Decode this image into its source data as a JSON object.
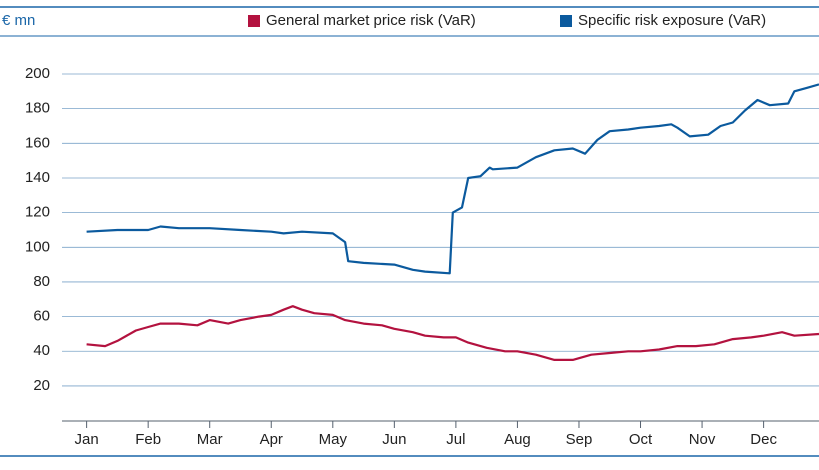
{
  "chart_data": {
    "type": "line",
    "y_unit": "€ mn",
    "ylim": [
      0,
      200
    ],
    "yticks": [
      20,
      40,
      60,
      80,
      100,
      120,
      140,
      160,
      180,
      200
    ],
    "xlim": [
      -0.4,
      11.9
    ],
    "xticks": [
      {
        "value": 0,
        "label": "Jan"
      },
      {
        "value": 1,
        "label": "Feb"
      },
      {
        "value": 2,
        "label": "Mar"
      },
      {
        "value": 3,
        "label": "Apr"
      },
      {
        "value": 4,
        "label": "May"
      },
      {
        "value": 5,
        "label": "Jun"
      },
      {
        "value": 6,
        "label": "Jul"
      },
      {
        "value": 7,
        "label": "Aug"
      },
      {
        "value": 8,
        "label": "Sep"
      },
      {
        "value": 9,
        "label": "Oct"
      },
      {
        "value": 10,
        "label": "Nov"
      },
      {
        "value": 11,
        "label": "Dec"
      }
    ],
    "grid": true,
    "legend": "top-right",
    "series": [
      {
        "name": "General market price risk (VaR)",
        "color": "#b3123f",
        "x": [
          0,
          0.3,
          0.5,
          0.8,
          1.0,
          1.2,
          1.5,
          1.8,
          2.0,
          2.3,
          2.5,
          2.8,
          3.0,
          3.2,
          3.35,
          3.5,
          3.7,
          4.0,
          4.2,
          4.5,
          4.8,
          5.0,
          5.3,
          5.5,
          5.8,
          6.0,
          6.2,
          6.5,
          6.8,
          7.0,
          7.3,
          7.6,
          7.9,
          8.2,
          8.5,
          8.8,
          9.0,
          9.3,
          9.6,
          9.9,
          10.2,
          10.5,
          10.8,
          11.0,
          11.3,
          11.5,
          11.9
        ],
        "values": [
          44,
          43,
          46,
          52,
          54,
          56,
          56,
          55,
          58,
          56,
          58,
          60,
          61,
          64,
          66,
          64,
          62,
          61,
          58,
          56,
          55,
          53,
          51,
          49,
          48,
          48,
          45,
          42,
          40,
          40,
          38,
          35,
          35,
          38,
          39,
          40,
          40,
          41,
          43,
          43,
          44,
          47,
          48,
          49,
          51,
          49,
          50
        ]
      },
      {
        "name": "Specific risk exposure (VaR)",
        "color": "#0b5a9e",
        "x": [
          0,
          0.5,
          1.0,
          1.2,
          1.5,
          2.0,
          2.5,
          3.0,
          3.2,
          3.5,
          4.0,
          4.2,
          4.25,
          4.5,
          5.0,
          5.3,
          5.5,
          5.9,
          5.95,
          6.1,
          6.2,
          6.4,
          6.55,
          6.6,
          7.0,
          7.3,
          7.6,
          7.9,
          8.1,
          8.3,
          8.5,
          8.8,
          9.0,
          9.3,
          9.5,
          9.6,
          9.8,
          10.1,
          10.3,
          10.5,
          10.7,
          10.9,
          11.1,
          11.4,
          11.5,
          11.7,
          11.9
        ],
        "values": [
          109,
          110,
          110,
          112,
          111,
          111,
          110,
          109,
          108,
          109,
          108,
          103,
          92,
          91,
          90,
          87,
          86,
          85,
          120,
          123,
          140,
          141,
          146,
          145,
          146,
          152,
          156,
          157,
          154,
          162,
          167,
          168,
          169,
          170,
          171,
          169,
          164,
          165,
          170,
          172,
          179,
          185,
          182,
          183,
          190,
          192,
          194
        ]
      }
    ]
  }
}
